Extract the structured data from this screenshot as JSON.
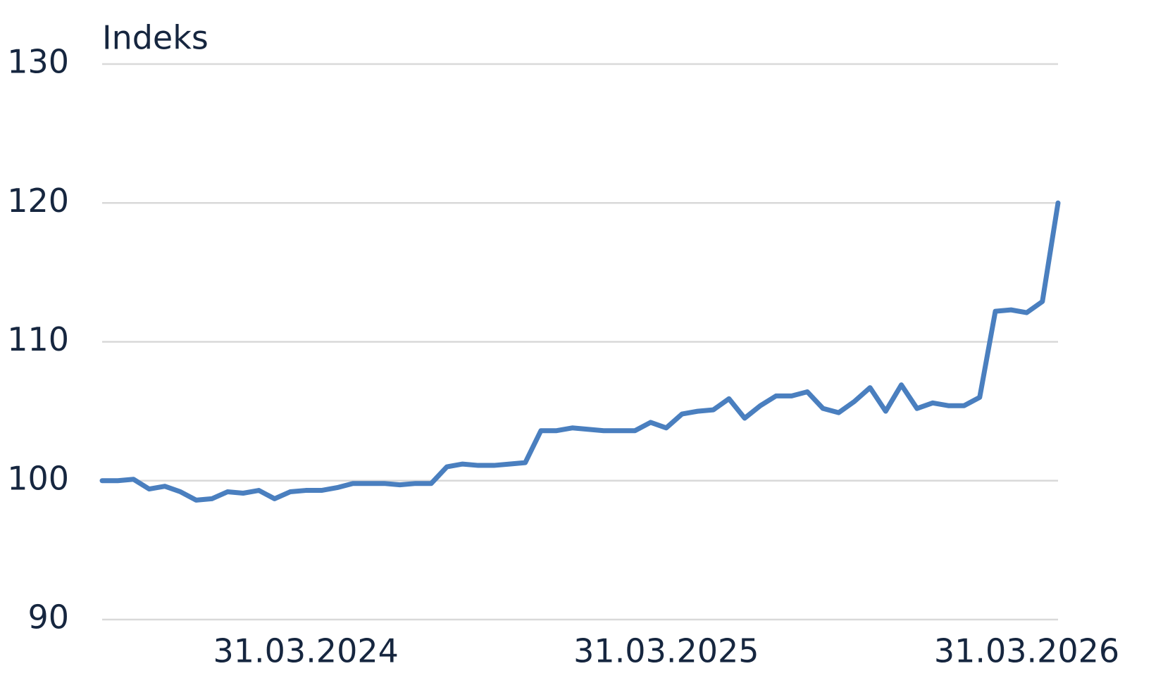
{
  "chart_data": {
    "type": "line",
    "y_label": "Indeks",
    "categories": [
      null,
      null,
      null,
      null,
      null,
      null,
      null,
      null,
      null,
      null,
      null,
      null,
      null,
      "31.03.2024",
      null,
      null,
      null,
      null,
      null,
      null,
      null,
      null,
      null,
      null,
      null,
      null,
      null,
      null,
      null,
      null,
      null,
      null,
      null,
      null,
      null,
      null,
      "31.03.2025",
      null,
      null,
      null,
      null,
      null,
      null,
      null,
      null,
      null,
      null,
      null,
      null,
      null,
      null,
      null,
      null,
      null,
      null,
      null,
      null,
      null,
      null,
      "31.03.2026",
      null,
      null
    ],
    "series": [
      {
        "name": "Indeks",
        "color": "#4a7fbf",
        "values": [
          100.0,
          100.0,
          100.1,
          99.4,
          99.6,
          99.2,
          98.6,
          98.7,
          99.2,
          99.1,
          99.3,
          98.7,
          99.2,
          99.3,
          99.3,
          99.5,
          99.8,
          99.8,
          99.8,
          99.7,
          99.8,
          99.8,
          101.0,
          101.2,
          101.1,
          101.1,
          101.2,
          101.3,
          103.6,
          103.6,
          103.8,
          103.7,
          103.6,
          103.6,
          103.6,
          104.2,
          103.8,
          104.8,
          105.0,
          105.1,
          105.9,
          104.5,
          105.4,
          106.1,
          106.1,
          106.4,
          105.2,
          104.9,
          105.7,
          106.7,
          105.0,
          106.9,
          105.2,
          105.6,
          105.4,
          105.4,
          106.0,
          112.2,
          112.3,
          112.1,
          112.9,
          120.0
        ]
      }
    ],
    "ylim": [
      90,
      130
    ],
    "yticks": [
      90,
      100,
      110,
      120,
      130
    ],
    "grid": true
  }
}
